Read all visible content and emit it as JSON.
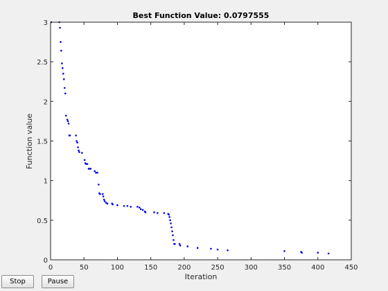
{
  "buttons": {
    "stop_label": "Stop",
    "pause_label": "Pause"
  },
  "chart_data": {
    "type": "scatter",
    "title": "Best Function Value: 0.0797555",
    "xlabel": "Iteration",
    "ylabel": "Function value",
    "xlim": [
      0,
      450
    ],
    "ylim": [
      0,
      3
    ],
    "xticks": [
      0,
      50,
      100,
      150,
      200,
      250,
      300,
      350,
      400,
      450
    ],
    "yticks": [
      0,
      0.5,
      1,
      1.5,
      2,
      2.5,
      3
    ],
    "ytick_labels": [
      "0",
      "0.5",
      "1",
      "1.5",
      "2",
      "2.5",
      "3"
    ],
    "grid": false,
    "marker_color": "#0000e6",
    "series": [
      {
        "x": [
          1,
          13,
          14,
          15,
          16,
          17,
          18,
          19,
          20,
          21,
          22,
          23,
          25,
          26,
          27,
          28,
          29,
          38,
          39,
          40,
          41,
          42,
          43,
          47,
          51,
          52,
          53,
          55,
          57,
          58,
          60,
          66,
          68,
          70,
          72,
          73,
          74,
          78,
          79,
          80,
          81,
          83,
          85,
          92,
          93,
          100,
          110,
          115,
          120,
          130,
          133,
          135,
          138,
          141,
          142,
          155,
          160,
          170,
          176,
          177,
          178,
          179,
          180,
          181,
          182,
          183,
          184,
          185,
          186,
          193,
          194,
          205,
          220,
          240,
          250,
          265,
          350,
          375,
          376,
          400,
          416
        ],
        "y": [
          3.0,
          3.0,
          2.93,
          2.75,
          2.64,
          2.48,
          2.42,
          2.35,
          2.28,
          2.17,
          2.1,
          1.82,
          1.77,
          1.75,
          1.72,
          1.57,
          1.57,
          1.57,
          1.5,
          1.48,
          1.42,
          1.38,
          1.36,
          1.35,
          1.26,
          1.22,
          1.21,
          1.21,
          1.15,
          1.15,
          1.15,
          1.12,
          1.1,
          1.1,
          0.95,
          0.84,
          0.83,
          0.83,
          0.8,
          0.76,
          0.74,
          0.72,
          0.71,
          0.71,
          0.7,
          0.69,
          0.68,
          0.68,
          0.67,
          0.67,
          0.66,
          0.64,
          0.63,
          0.61,
          0.6,
          0.6,
          0.59,
          0.59,
          0.58,
          0.57,
          0.54,
          0.5,
          0.46,
          0.41,
          0.36,
          0.31,
          0.25,
          0.2,
          0.2,
          0.2,
          0.18,
          0.17,
          0.15,
          0.14,
          0.13,
          0.12,
          0.11,
          0.1,
          0.09,
          0.09,
          0.0797555
        ]
      }
    ]
  }
}
